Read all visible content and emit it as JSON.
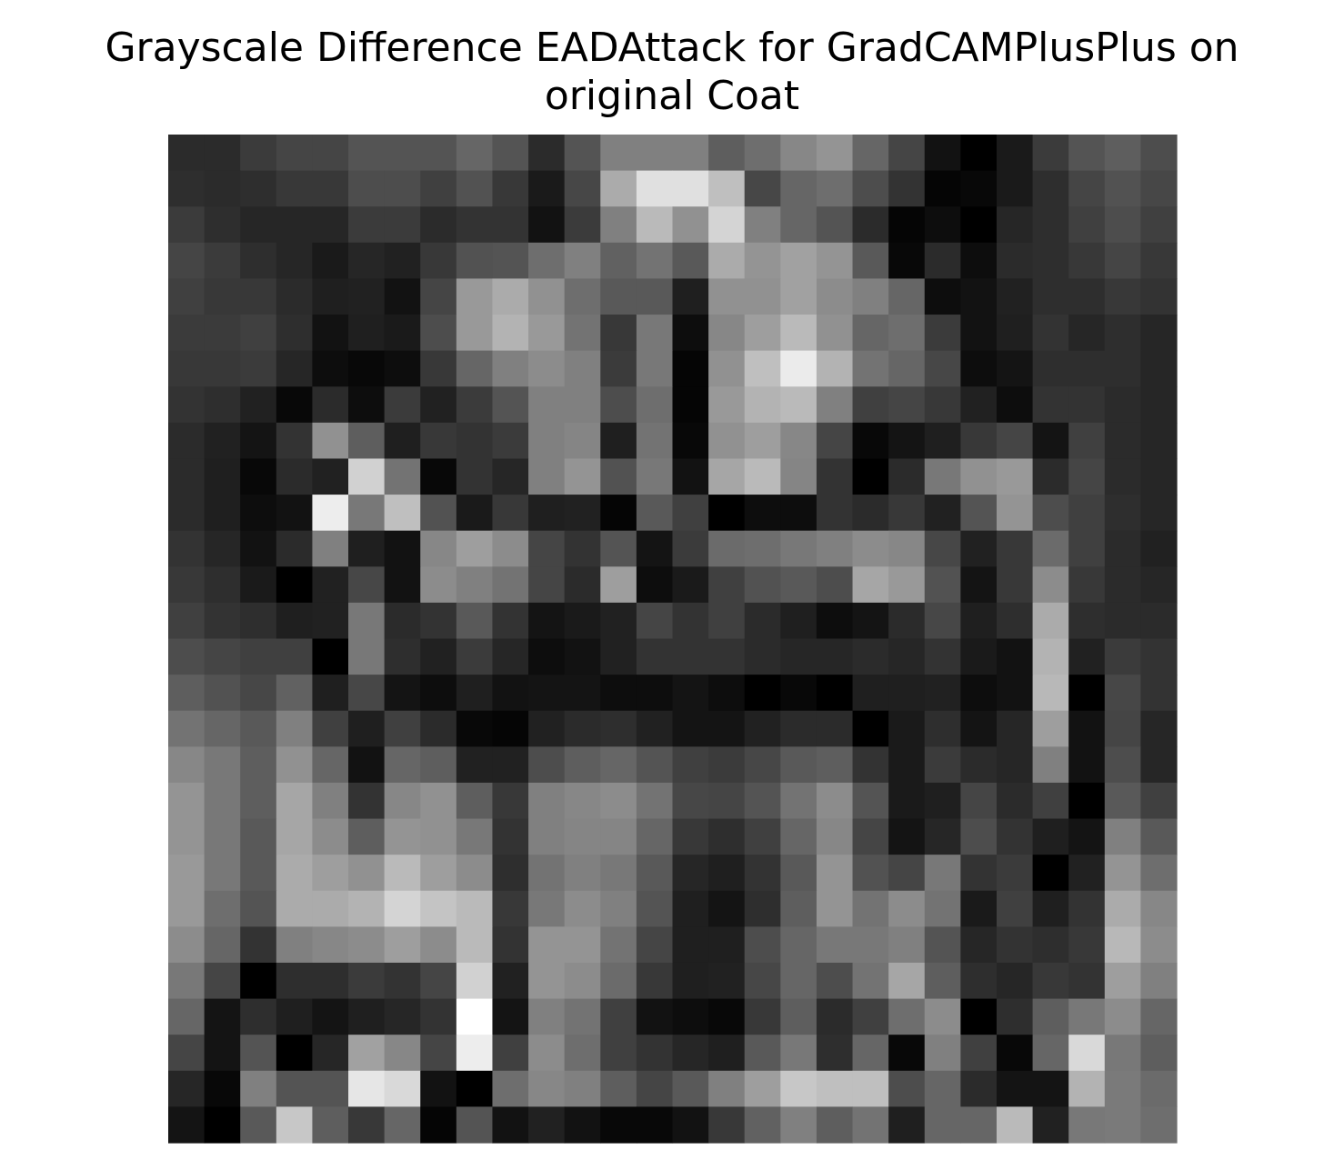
{
  "chart_data": {
    "type": "heatmap",
    "title": "Grayscale Difference EADAttack for GradCAMPlusPlus on original Coat",
    "title_lines": [
      "Grayscale Difference EADAttack for GradCAMPlusPlus on",
      "original Coat"
    ],
    "xlabel": "",
    "ylabel": "",
    "colormap": "gray",
    "axes_visible": false,
    "grid": false,
    "shape": [
      28,
      28
    ],
    "values": [
      [
        0.17,
        0.17,
        0.23,
        0.27,
        0.27,
        0.33,
        0.33,
        0.33,
        0.4,
        0.33,
        0.17,
        0.33,
        0.5,
        0.5,
        0.5,
        0.37,
        0.43,
        0.53,
        0.58,
        0.4,
        0.27,
        0.07,
        0.0,
        0.1,
        0.23,
        0.33,
        0.37,
        0.3
      ],
      [
        0.18,
        0.17,
        0.18,
        0.22,
        0.22,
        0.3,
        0.3,
        0.25,
        0.32,
        0.22,
        0.1,
        0.28,
        0.67,
        0.88,
        0.88,
        0.75,
        0.28,
        0.4,
        0.43,
        0.3,
        0.2,
        0.02,
        0.03,
        0.1,
        0.18,
        0.27,
        0.32,
        0.28
      ],
      [
        0.23,
        0.18,
        0.15,
        0.15,
        0.15,
        0.23,
        0.23,
        0.17,
        0.2,
        0.2,
        0.07,
        0.23,
        0.5,
        0.73,
        0.57,
        0.83,
        0.5,
        0.4,
        0.33,
        0.17,
        0.02,
        0.05,
        0.0,
        0.15,
        0.18,
        0.25,
        0.3,
        0.25
      ],
      [
        0.27,
        0.23,
        0.18,
        0.15,
        0.1,
        0.15,
        0.13,
        0.22,
        0.32,
        0.33,
        0.43,
        0.5,
        0.38,
        0.45,
        0.35,
        0.67,
        0.58,
        0.63,
        0.58,
        0.35,
        0.03,
        0.17,
        0.05,
        0.17,
        0.18,
        0.22,
        0.27,
        0.22
      ],
      [
        0.25,
        0.22,
        0.22,
        0.17,
        0.12,
        0.13,
        0.07,
        0.27,
        0.6,
        0.67,
        0.57,
        0.43,
        0.35,
        0.35,
        0.12,
        0.57,
        0.57,
        0.63,
        0.55,
        0.5,
        0.4,
        0.05,
        0.07,
        0.13,
        0.18,
        0.18,
        0.22,
        0.2
      ],
      [
        0.23,
        0.23,
        0.25,
        0.18,
        0.07,
        0.12,
        0.1,
        0.3,
        0.6,
        0.7,
        0.6,
        0.45,
        0.22,
        0.47,
        0.05,
        0.53,
        0.62,
        0.73,
        0.57,
        0.4,
        0.43,
        0.23,
        0.07,
        0.12,
        0.2,
        0.15,
        0.18,
        0.15
      ],
      [
        0.22,
        0.22,
        0.23,
        0.15,
        0.05,
        0.03,
        0.05,
        0.22,
        0.4,
        0.5,
        0.55,
        0.5,
        0.23,
        0.47,
        0.02,
        0.57,
        0.75,
        0.92,
        0.7,
        0.45,
        0.4,
        0.28,
        0.05,
        0.08,
        0.18,
        0.18,
        0.18,
        0.15
      ],
      [
        0.2,
        0.18,
        0.13,
        0.03,
        0.17,
        0.05,
        0.23,
        0.13,
        0.23,
        0.33,
        0.5,
        0.5,
        0.3,
        0.43,
        0.02,
        0.6,
        0.7,
        0.73,
        0.5,
        0.25,
        0.27,
        0.22,
        0.13,
        0.05,
        0.2,
        0.2,
        0.17,
        0.15
      ],
      [
        0.17,
        0.13,
        0.08,
        0.2,
        0.57,
        0.37,
        0.12,
        0.22,
        0.2,
        0.23,
        0.5,
        0.52,
        0.12,
        0.45,
        0.03,
        0.57,
        0.62,
        0.53,
        0.27,
        0.03,
        0.08,
        0.12,
        0.22,
        0.27,
        0.08,
        0.25,
        0.17,
        0.15
      ],
      [
        0.17,
        0.12,
        0.03,
        0.17,
        0.13,
        0.82,
        0.45,
        0.03,
        0.2,
        0.15,
        0.5,
        0.58,
        0.32,
        0.47,
        0.07,
        0.65,
        0.73,
        0.52,
        0.2,
        0.0,
        0.17,
        0.47,
        0.57,
        0.6,
        0.17,
        0.27,
        0.17,
        0.15
      ],
      [
        0.17,
        0.12,
        0.05,
        0.07,
        0.93,
        0.47,
        0.75,
        0.32,
        0.1,
        0.22,
        0.12,
        0.13,
        0.02,
        0.35,
        0.25,
        0.0,
        0.05,
        0.05,
        0.2,
        0.17,
        0.22,
        0.13,
        0.33,
        0.58,
        0.3,
        0.25,
        0.18,
        0.15
      ],
      [
        0.2,
        0.15,
        0.07,
        0.17,
        0.5,
        0.12,
        0.07,
        0.53,
        0.62,
        0.55,
        0.27,
        0.2,
        0.33,
        0.08,
        0.23,
        0.42,
        0.43,
        0.47,
        0.5,
        0.55,
        0.53,
        0.28,
        0.13,
        0.22,
        0.42,
        0.25,
        0.17,
        0.13
      ],
      [
        0.22,
        0.18,
        0.1,
        0.0,
        0.13,
        0.28,
        0.07,
        0.55,
        0.5,
        0.45,
        0.27,
        0.17,
        0.62,
        0.05,
        0.1,
        0.25,
        0.32,
        0.35,
        0.3,
        0.65,
        0.6,
        0.32,
        0.08,
        0.22,
        0.55,
        0.22,
        0.17,
        0.15
      ],
      [
        0.25,
        0.2,
        0.18,
        0.12,
        0.13,
        0.47,
        0.17,
        0.2,
        0.35,
        0.2,
        0.08,
        0.1,
        0.13,
        0.27,
        0.2,
        0.25,
        0.17,
        0.12,
        0.05,
        0.08,
        0.17,
        0.28,
        0.12,
        0.18,
        0.67,
        0.18,
        0.17,
        0.17
      ],
      [
        0.3,
        0.27,
        0.25,
        0.25,
        0.0,
        0.47,
        0.18,
        0.13,
        0.23,
        0.15,
        0.05,
        0.07,
        0.13,
        0.2,
        0.2,
        0.2,
        0.17,
        0.15,
        0.15,
        0.17,
        0.15,
        0.2,
        0.1,
        0.07,
        0.7,
        0.13,
        0.23,
        0.2
      ],
      [
        0.37,
        0.32,
        0.28,
        0.38,
        0.12,
        0.28,
        0.08,
        0.05,
        0.12,
        0.07,
        0.08,
        0.08,
        0.05,
        0.05,
        0.08,
        0.05,
        0.0,
        0.03,
        0.0,
        0.12,
        0.12,
        0.13,
        0.05,
        0.07,
        0.72,
        0.0,
        0.28,
        0.2
      ],
      [
        0.45,
        0.4,
        0.35,
        0.5,
        0.25,
        0.12,
        0.25,
        0.17,
        0.03,
        0.02,
        0.13,
        0.17,
        0.18,
        0.13,
        0.08,
        0.08,
        0.13,
        0.17,
        0.17,
        0.0,
        0.1,
        0.18,
        0.08,
        0.15,
        0.62,
        0.07,
        0.27,
        0.15
      ],
      [
        0.53,
        0.47,
        0.37,
        0.57,
        0.4,
        0.07,
        0.4,
        0.37,
        0.13,
        0.13,
        0.3,
        0.37,
        0.4,
        0.33,
        0.25,
        0.23,
        0.28,
        0.35,
        0.37,
        0.2,
        0.1,
        0.23,
        0.17,
        0.15,
        0.5,
        0.07,
        0.3,
        0.15
      ],
      [
        0.58,
        0.47,
        0.37,
        0.65,
        0.5,
        0.2,
        0.53,
        0.57,
        0.37,
        0.22,
        0.5,
        0.53,
        0.55,
        0.45,
        0.28,
        0.27,
        0.33,
        0.45,
        0.55,
        0.33,
        0.1,
        0.12,
        0.27,
        0.17,
        0.25,
        0.0,
        0.35,
        0.25
      ],
      [
        0.58,
        0.47,
        0.35,
        0.65,
        0.55,
        0.37,
        0.58,
        0.57,
        0.47,
        0.2,
        0.5,
        0.52,
        0.52,
        0.4,
        0.22,
        0.18,
        0.25,
        0.4,
        0.53,
        0.27,
        0.08,
        0.15,
        0.3,
        0.2,
        0.12,
        0.08,
        0.5,
        0.35
      ],
      [
        0.6,
        0.47,
        0.35,
        0.67,
        0.62,
        0.57,
        0.73,
        0.62,
        0.55,
        0.18,
        0.45,
        0.5,
        0.47,
        0.35,
        0.15,
        0.12,
        0.2,
        0.35,
        0.58,
        0.32,
        0.27,
        0.47,
        0.2,
        0.23,
        0.0,
        0.13,
        0.58,
        0.43
      ],
      [
        0.6,
        0.43,
        0.33,
        0.67,
        0.67,
        0.7,
        0.83,
        0.77,
        0.73,
        0.22,
        0.47,
        0.55,
        0.5,
        0.33,
        0.12,
        0.08,
        0.18,
        0.37,
        0.58,
        0.45,
        0.55,
        0.45,
        0.1,
        0.25,
        0.12,
        0.2,
        0.67,
        0.53
      ],
      [
        0.55,
        0.4,
        0.2,
        0.5,
        0.53,
        0.55,
        0.62,
        0.55,
        0.73,
        0.2,
        0.58,
        0.58,
        0.45,
        0.27,
        0.12,
        0.12,
        0.3,
        0.4,
        0.47,
        0.47,
        0.5,
        0.33,
        0.15,
        0.2,
        0.18,
        0.22,
        0.72,
        0.55
      ],
      [
        0.47,
        0.27,
        0.0,
        0.18,
        0.18,
        0.23,
        0.2,
        0.27,
        0.82,
        0.13,
        0.58,
        0.55,
        0.42,
        0.22,
        0.12,
        0.13,
        0.28,
        0.4,
        0.3,
        0.45,
        0.65,
        0.37,
        0.18,
        0.15,
        0.22,
        0.2,
        0.62,
        0.5
      ],
      [
        0.4,
        0.08,
        0.18,
        0.12,
        0.08,
        0.12,
        0.15,
        0.2,
        1.0,
        0.08,
        0.5,
        0.45,
        0.25,
        0.07,
        0.05,
        0.03,
        0.22,
        0.37,
        0.17,
        0.25,
        0.43,
        0.55,
        0.0,
        0.18,
        0.37,
        0.47,
        0.55,
        0.4
      ],
      [
        0.27,
        0.08,
        0.33,
        0.0,
        0.15,
        0.63,
        0.53,
        0.27,
        0.93,
        0.25,
        0.55,
        0.43,
        0.25,
        0.2,
        0.15,
        0.12,
        0.35,
        0.47,
        0.18,
        0.4,
        0.03,
        0.5,
        0.25,
        0.03,
        0.4,
        0.85,
        0.47,
        0.37
      ],
      [
        0.15,
        0.03,
        0.5,
        0.33,
        0.33,
        0.9,
        0.85,
        0.07,
        0.0,
        0.43,
        0.53,
        0.5,
        0.37,
        0.27,
        0.35,
        0.5,
        0.62,
        0.78,
        0.75,
        0.75,
        0.3,
        0.4,
        0.17,
        0.08,
        0.08,
        0.7,
        0.48,
        0.42
      ],
      [
        0.08,
        0.0,
        0.35,
        0.78,
        0.37,
        0.22,
        0.4,
        0.02,
        0.33,
        0.07,
        0.13,
        0.07,
        0.03,
        0.03,
        0.07,
        0.22,
        0.38,
        0.5,
        0.37,
        0.45,
        0.12,
        0.4,
        0.4,
        0.73,
        0.13,
        0.47,
        0.48,
        0.43
      ]
    ]
  }
}
